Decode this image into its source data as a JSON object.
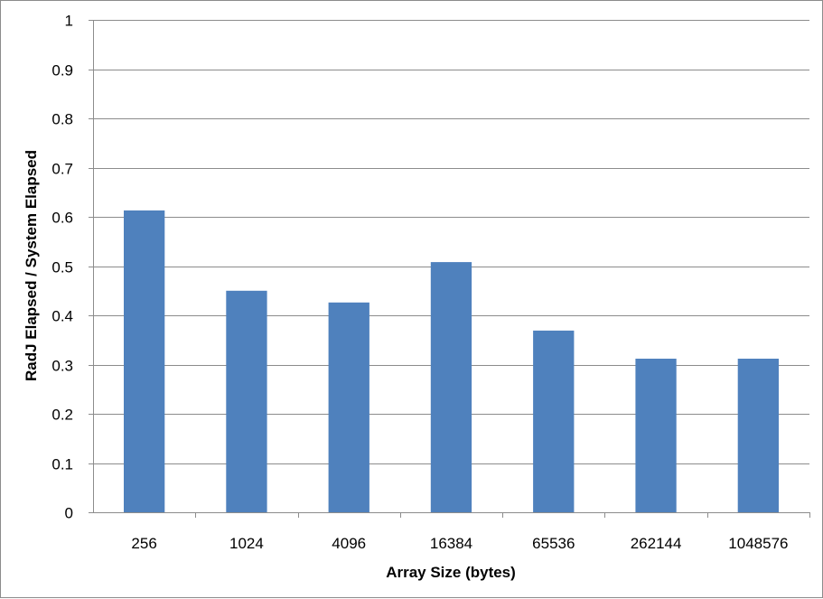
{
  "chart_data": {
    "type": "bar",
    "title": "",
    "xlabel": "Array Size (bytes)",
    "ylabel": "RadJ Elapsed / System Elapsed",
    "categories": [
      "256",
      "1024",
      "4096",
      "16384",
      "65536",
      "262144",
      "1048576"
    ],
    "values": [
      0.613,
      0.45,
      0.426,
      0.508,
      0.369,
      0.312,
      0.312
    ],
    "ylim": [
      0,
      1
    ],
    "yticks": [
      "0",
      "0.1",
      "0.2",
      "0.3",
      "0.4",
      "0.5",
      "0.6",
      "0.7",
      "0.8",
      "0.9",
      "1"
    ],
    "grid": true,
    "legend": "none",
    "bar_color": "#4f81bd"
  }
}
